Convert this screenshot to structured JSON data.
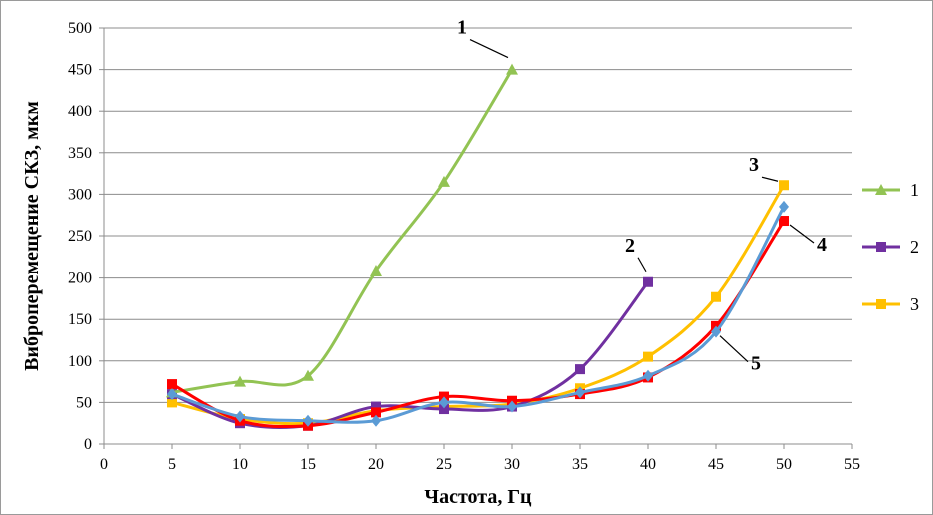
{
  "chart_data": {
    "type": "line",
    "xlabel": "Частота, Гц",
    "ylabel": "Виброперемещение СКЗ, мкм",
    "xlim": [
      0,
      55
    ],
    "ylim": [
      0,
      500
    ],
    "xticks": [
      "0",
      "5",
      "10",
      "15",
      "20",
      "25",
      "30",
      "35",
      "40",
      "45",
      "50",
      "55"
    ],
    "yticks": [
      "0",
      "50",
      "100",
      "150",
      "200",
      "250",
      "300",
      "350",
      "400",
      "450",
      "500"
    ],
    "grid": "horizontal",
    "legend_position": "right",
    "series": [
      {
        "name": "1",
        "color": "#92c353",
        "marker": "triangle",
        "x": [
          5,
          10,
          15,
          20,
          25,
          30
        ],
        "y": [
          62,
          75,
          82,
          208,
          315,
          450
        ]
      },
      {
        "name": "2",
        "color": "#7030a0",
        "marker": "square",
        "x": [
          5,
          10,
          15,
          20,
          25,
          30,
          35,
          40
        ],
        "y": [
          60,
          25,
          22,
          45,
          42,
          45,
          90,
          195
        ]
      },
      {
        "name": "3",
        "color": "#ffc000",
        "marker": "square",
        "x": [
          5,
          10,
          15,
          20,
          25,
          30,
          35,
          40,
          45,
          50
        ],
        "y": [
          50,
          30,
          25,
          40,
          45,
          48,
          67,
          105,
          177,
          311
        ]
      },
      {
        "color": "#ff0000",
        "marker": "square",
        "x": [
          5,
          10,
          15,
          20,
          25,
          30,
          35,
          40,
          45,
          50
        ],
        "y": [
          72,
          28,
          22,
          38,
          57,
          52,
          60,
          80,
          142,
          268
        ]
      },
      {
        "color": "#5b9bd5",
        "marker": "diamond",
        "x": [
          5,
          10,
          15,
          20,
          25,
          30,
          35,
          40,
          45,
          50
        ],
        "y": [
          60,
          33,
          28,
          28,
          50,
          45,
          62,
          82,
          135,
          285
        ]
      }
    ],
    "annotations": [
      {
        "text": "1",
        "series_index": 0,
        "point_index": 5
      },
      {
        "text": "2",
        "series_index": 1,
        "point_index": 7
      },
      {
        "text": "3",
        "series_index": 2,
        "point_index": 9
      },
      {
        "text": "4",
        "series_index": 3,
        "point_index": 9
      },
      {
        "text": "5",
        "series_index": 4,
        "point_index": 8
      }
    ]
  }
}
